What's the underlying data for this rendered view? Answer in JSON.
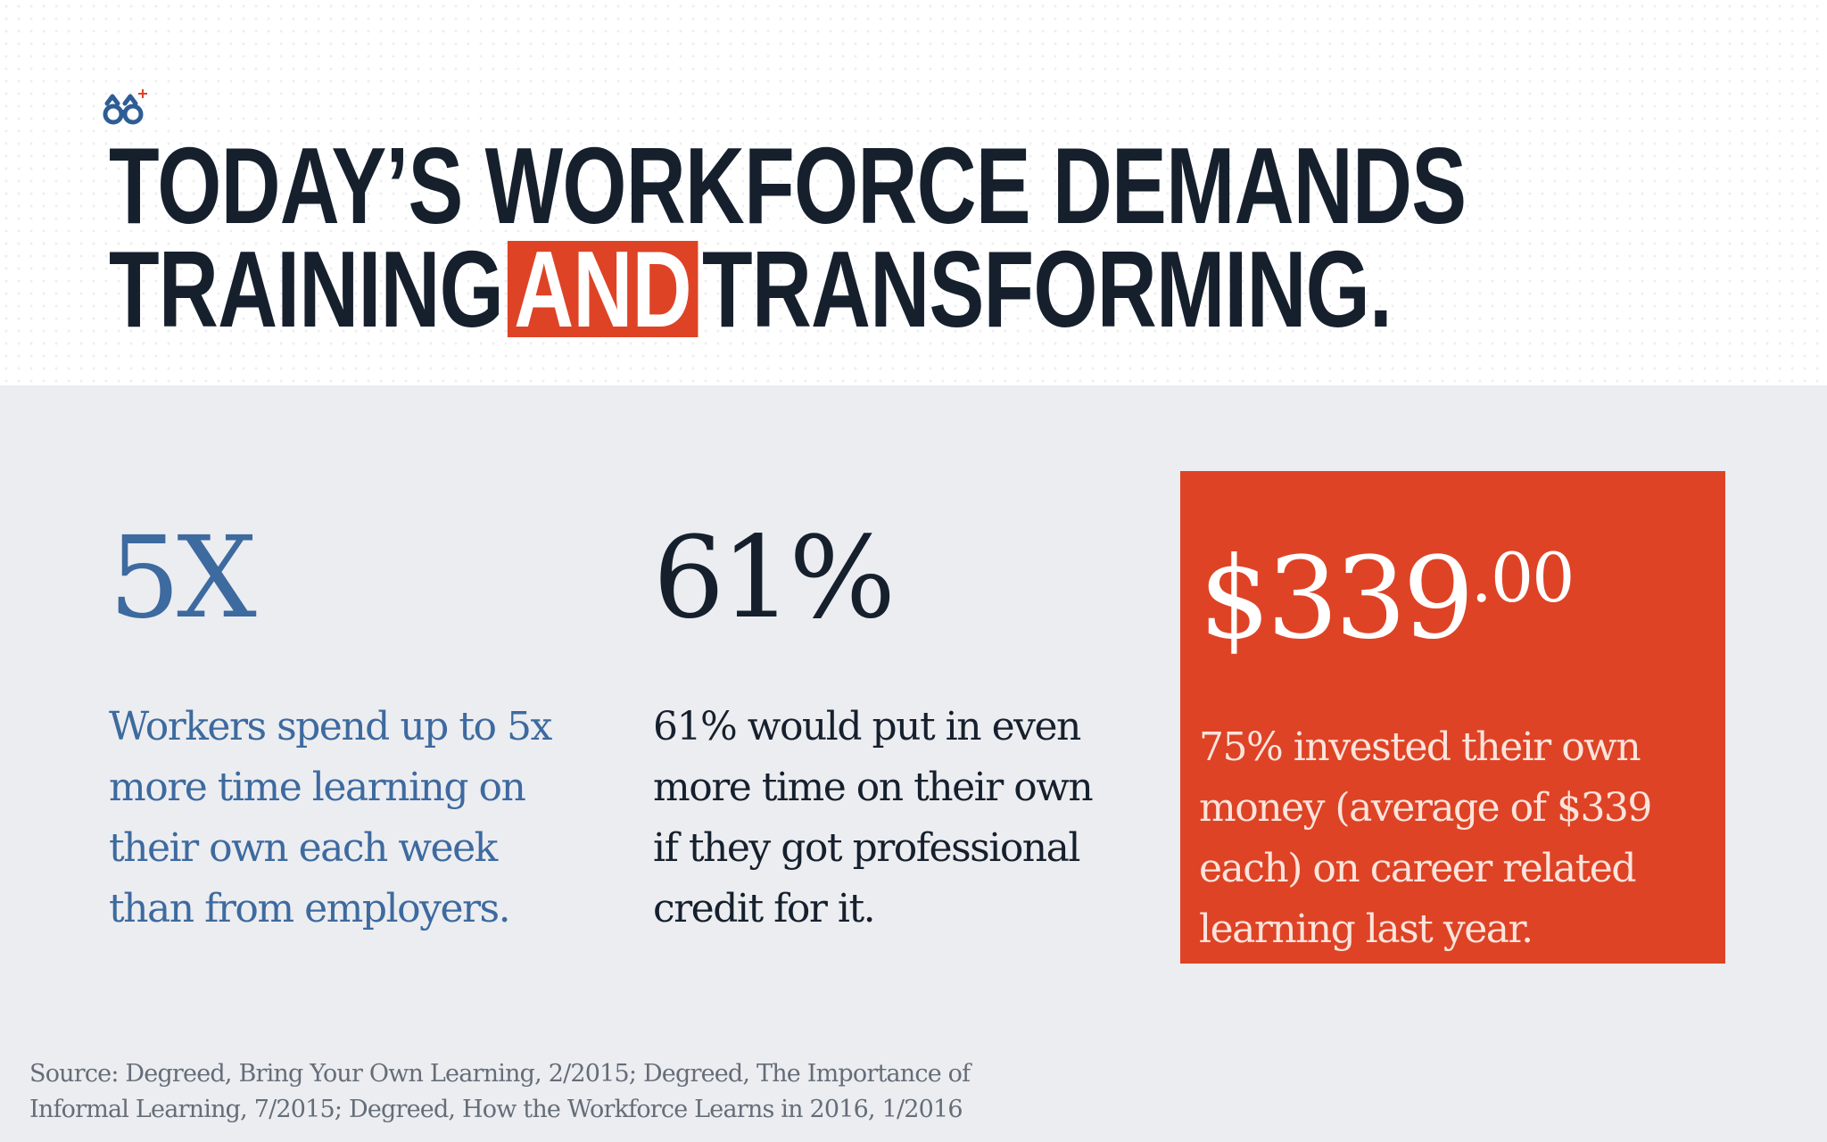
{
  "brand": {
    "logo_icon": "glasses-icon",
    "colors": {
      "accent": "#de4326",
      "dark": "#16202d",
      "blue": "#3d6a9f",
      "band_background": "#ecedf1"
    }
  },
  "headline": {
    "line1": "TODAY’S WORKFORCE DEMANDS",
    "line2_before": "TRAINING",
    "line2_highlight": "AND",
    "line2_after": "TRANSFORMING."
  },
  "stats": [
    {
      "value": "5X",
      "description_lines": [
        "Workers spend up to 5x",
        "more time learning on",
        "their own each week",
        "than from employers."
      ]
    },
    {
      "value": "61%",
      "description_lines": [
        "61% would put in even",
        "more time on their own",
        "if they got professional",
        "credit for it."
      ]
    },
    {
      "value_main": "$339",
      "value_cents": ".00",
      "description_lines": [
        "75% invested their own",
        "money (average of $339",
        "each) on career related",
        "learning last year."
      ]
    }
  ],
  "source": {
    "lines": [
      "Source: Degreed, Bring Your Own Learning, 2/2015; Degreed, The Importance of",
      "Informal Learning, 7/2015; Degreed, How the Workforce Learns in 2016, 1/2016"
    ]
  }
}
